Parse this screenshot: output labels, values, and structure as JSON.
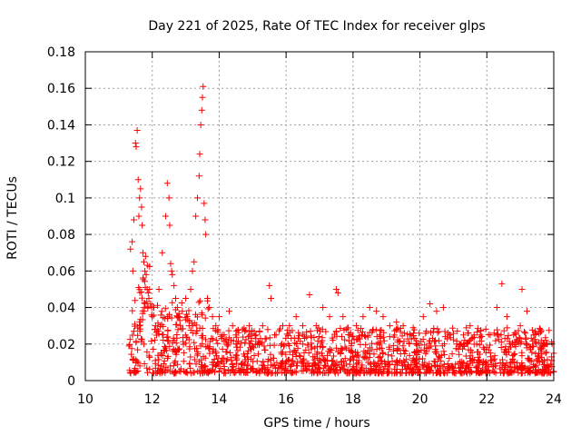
{
  "chart_data": {
    "type": "scatter",
    "title": "Day 221 of 2025, Rate Of TEC Index for receiver glps",
    "xlabel": "GPS time / hours",
    "ylabel": "ROTI / TECUs",
    "xlim": [
      10,
      24
    ],
    "ylim": [
      0,
      0.18
    ],
    "x_ticks": [
      "10",
      "12",
      "14",
      "16",
      "18",
      "20",
      "22",
      "24"
    ],
    "y_ticks": [
      "0",
      "0.02",
      "0.04",
      "0.06",
      "0.08",
      "0.1",
      "0.12",
      "0.14",
      "0.16",
      "0.18"
    ],
    "x_tick_values": [
      10,
      12,
      14,
      16,
      18,
      20,
      22,
      24
    ],
    "y_tick_values": [
      0,
      0.02,
      0.04,
      0.06,
      0.08,
      0.1,
      0.12,
      0.14,
      0.16,
      0.18
    ],
    "grid": true,
    "marker": "+",
    "series": [
      {
        "name": "ROTI",
        "color": "#ff0000",
        "x": [
          11.35,
          11.4,
          11.42,
          11.45,
          11.5,
          11.52,
          11.55,
          11.58,
          11.6,
          11.62,
          11.65,
          11.68,
          11.7,
          11.72,
          11.75,
          11.78,
          11.8,
          11.82,
          11.85,
          11.88,
          11.9,
          11.92,
          11.95,
          11.98,
          12.0,
          12.05,
          12.1,
          12.15,
          12.2,
          12.3,
          12.4,
          12.45,
          12.5,
          12.52,
          12.55,
          12.58,
          12.6,
          12.65,
          12.7,
          12.75,
          12.8,
          12.9,
          13.0,
          13.05,
          13.1,
          13.15,
          13.2,
          13.25,
          13.3,
          13.35,
          13.4,
          13.42,
          13.45,
          13.48,
          13.5,
          13.52,
          13.55,
          13.58,
          13.6,
          13.65,
          13.7,
          13.8,
          13.9,
          14.0,
          14.1,
          14.2,
          14.3,
          14.4,
          14.5,
          14.7,
          14.9,
          15.1,
          15.3,
          15.5,
          15.55,
          15.7,
          15.9,
          16.1,
          16.3,
          16.5,
          16.7,
          16.9,
          17.1,
          17.3,
          17.5,
          17.55,
          17.7,
          17.9,
          18.1,
          18.3,
          18.5,
          18.7,
          18.9,
          19.1,
          19.3,
          19.5,
          19.7,
          19.9,
          20.1,
          20.3,
          20.5,
          20.7,
          20.9,
          21.1,
          21.3,
          21.5,
          21.7,
          21.9,
          22.1,
          22.3,
          22.45,
          22.6,
          22.8,
          23.0,
          23.05,
          23.2,
          23.4,
          23.6,
          23.8,
          24.0
        ],
        "y": [
          0.072,
          0.076,
          0.06,
          0.088,
          0.13,
          0.128,
          0.137,
          0.11,
          0.09,
          0.1,
          0.105,
          0.095,
          0.085,
          0.07,
          0.065,
          0.06,
          0.068,
          0.058,
          0.05,
          0.048,
          0.045,
          0.05,
          0.042,
          0.04,
          0.035,
          0.04,
          0.03,
          0.028,
          0.05,
          0.07,
          0.09,
          0.108,
          0.1,
          0.085,
          0.064,
          0.06,
          0.058,
          0.052,
          0.045,
          0.04,
          0.035,
          0.038,
          0.045,
          0.035,
          0.03,
          0.05,
          0.06,
          0.065,
          0.09,
          0.1,
          0.112,
          0.124,
          0.14,
          0.148,
          0.155,
          0.161,
          0.097,
          0.088,
          0.08,
          0.045,
          0.04,
          0.035,
          0.03,
          0.035,
          0.025,
          0.022,
          0.038,
          0.03,
          0.025,
          0.028,
          0.03,
          0.025,
          0.03,
          0.052,
          0.045,
          0.025,
          0.03,
          0.03,
          0.035,
          0.03,
          0.047,
          0.03,
          0.04,
          0.035,
          0.05,
          0.048,
          0.035,
          0.025,
          0.03,
          0.035,
          0.04,
          0.038,
          0.035,
          0.03,
          0.032,
          0.03,
          0.025,
          0.02,
          0.035,
          0.042,
          0.038,
          0.04,
          0.025,
          0.02,
          0.025,
          0.03,
          0.02,
          0.018,
          0.025,
          0.04,
          0.053,
          0.035,
          0.025,
          0.03,
          0.05,
          0.038,
          0.025,
          0.028,
          0.02,
          0.015
        ]
      }
    ]
  }
}
